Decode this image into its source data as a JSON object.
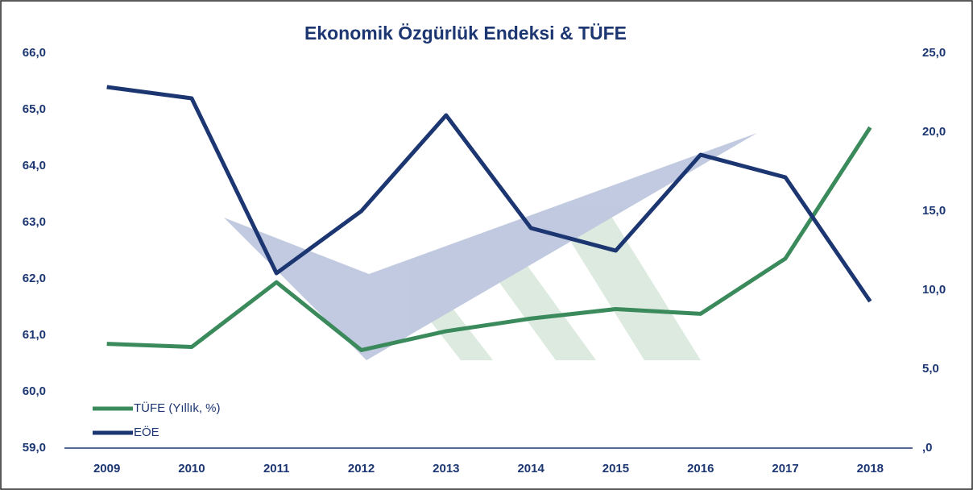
{
  "chart_data": {
    "type": "line",
    "title": "Ekonomik Özgürlük Endeksi & TÜFE",
    "categories": [
      "2009",
      "2010",
      "2011",
      "2012",
      "2013",
      "2014",
      "2015",
      "2016",
      "2017",
      "2018"
    ],
    "series": [
      {
        "name": "TÜFE (Yıllık, %)",
        "color": "#3a8a5c",
        "axis": "y2",
        "values": [
          6.6,
          6.4,
          10.5,
          6.2,
          7.4,
          8.2,
          8.8,
          8.5,
          12.0,
          20.3
        ]
      },
      {
        "name": "EÖE",
        "color": "#1c3672",
        "values": [
          65.4,
          65.2,
          62.1,
          63.2,
          64.9,
          62.9,
          62.5,
          64.2,
          63.8,
          61.6
        ]
      }
    ],
    "ylim": [
      59,
      66
    ],
    "yticks": [
      {
        "value": 59,
        "label": "59,0"
      },
      {
        "value": 60,
        "label": "60,0"
      },
      {
        "value": 61,
        "label": "61,0"
      },
      {
        "value": 62,
        "label": "62,0"
      },
      {
        "value": 63,
        "label": "63,0"
      },
      {
        "value": 64,
        "label": "64,0"
      },
      {
        "value": 65,
        "label": "65,0"
      },
      {
        "value": 66,
        "label": "66,0"
      }
    ],
    "y2lim": [
      0,
      25
    ],
    "y2ticks": [
      {
        "value": 0,
        "label": ",0"
      },
      {
        "value": 5,
        "label": "5,0"
      },
      {
        "value": 10,
        "label": "10,0"
      },
      {
        "value": 15,
        "label": "15,0"
      },
      {
        "value": 20,
        "label": "20,0"
      },
      {
        "value": 25,
        "label": "25,0"
      }
    ],
    "legend": "lower-left"
  }
}
